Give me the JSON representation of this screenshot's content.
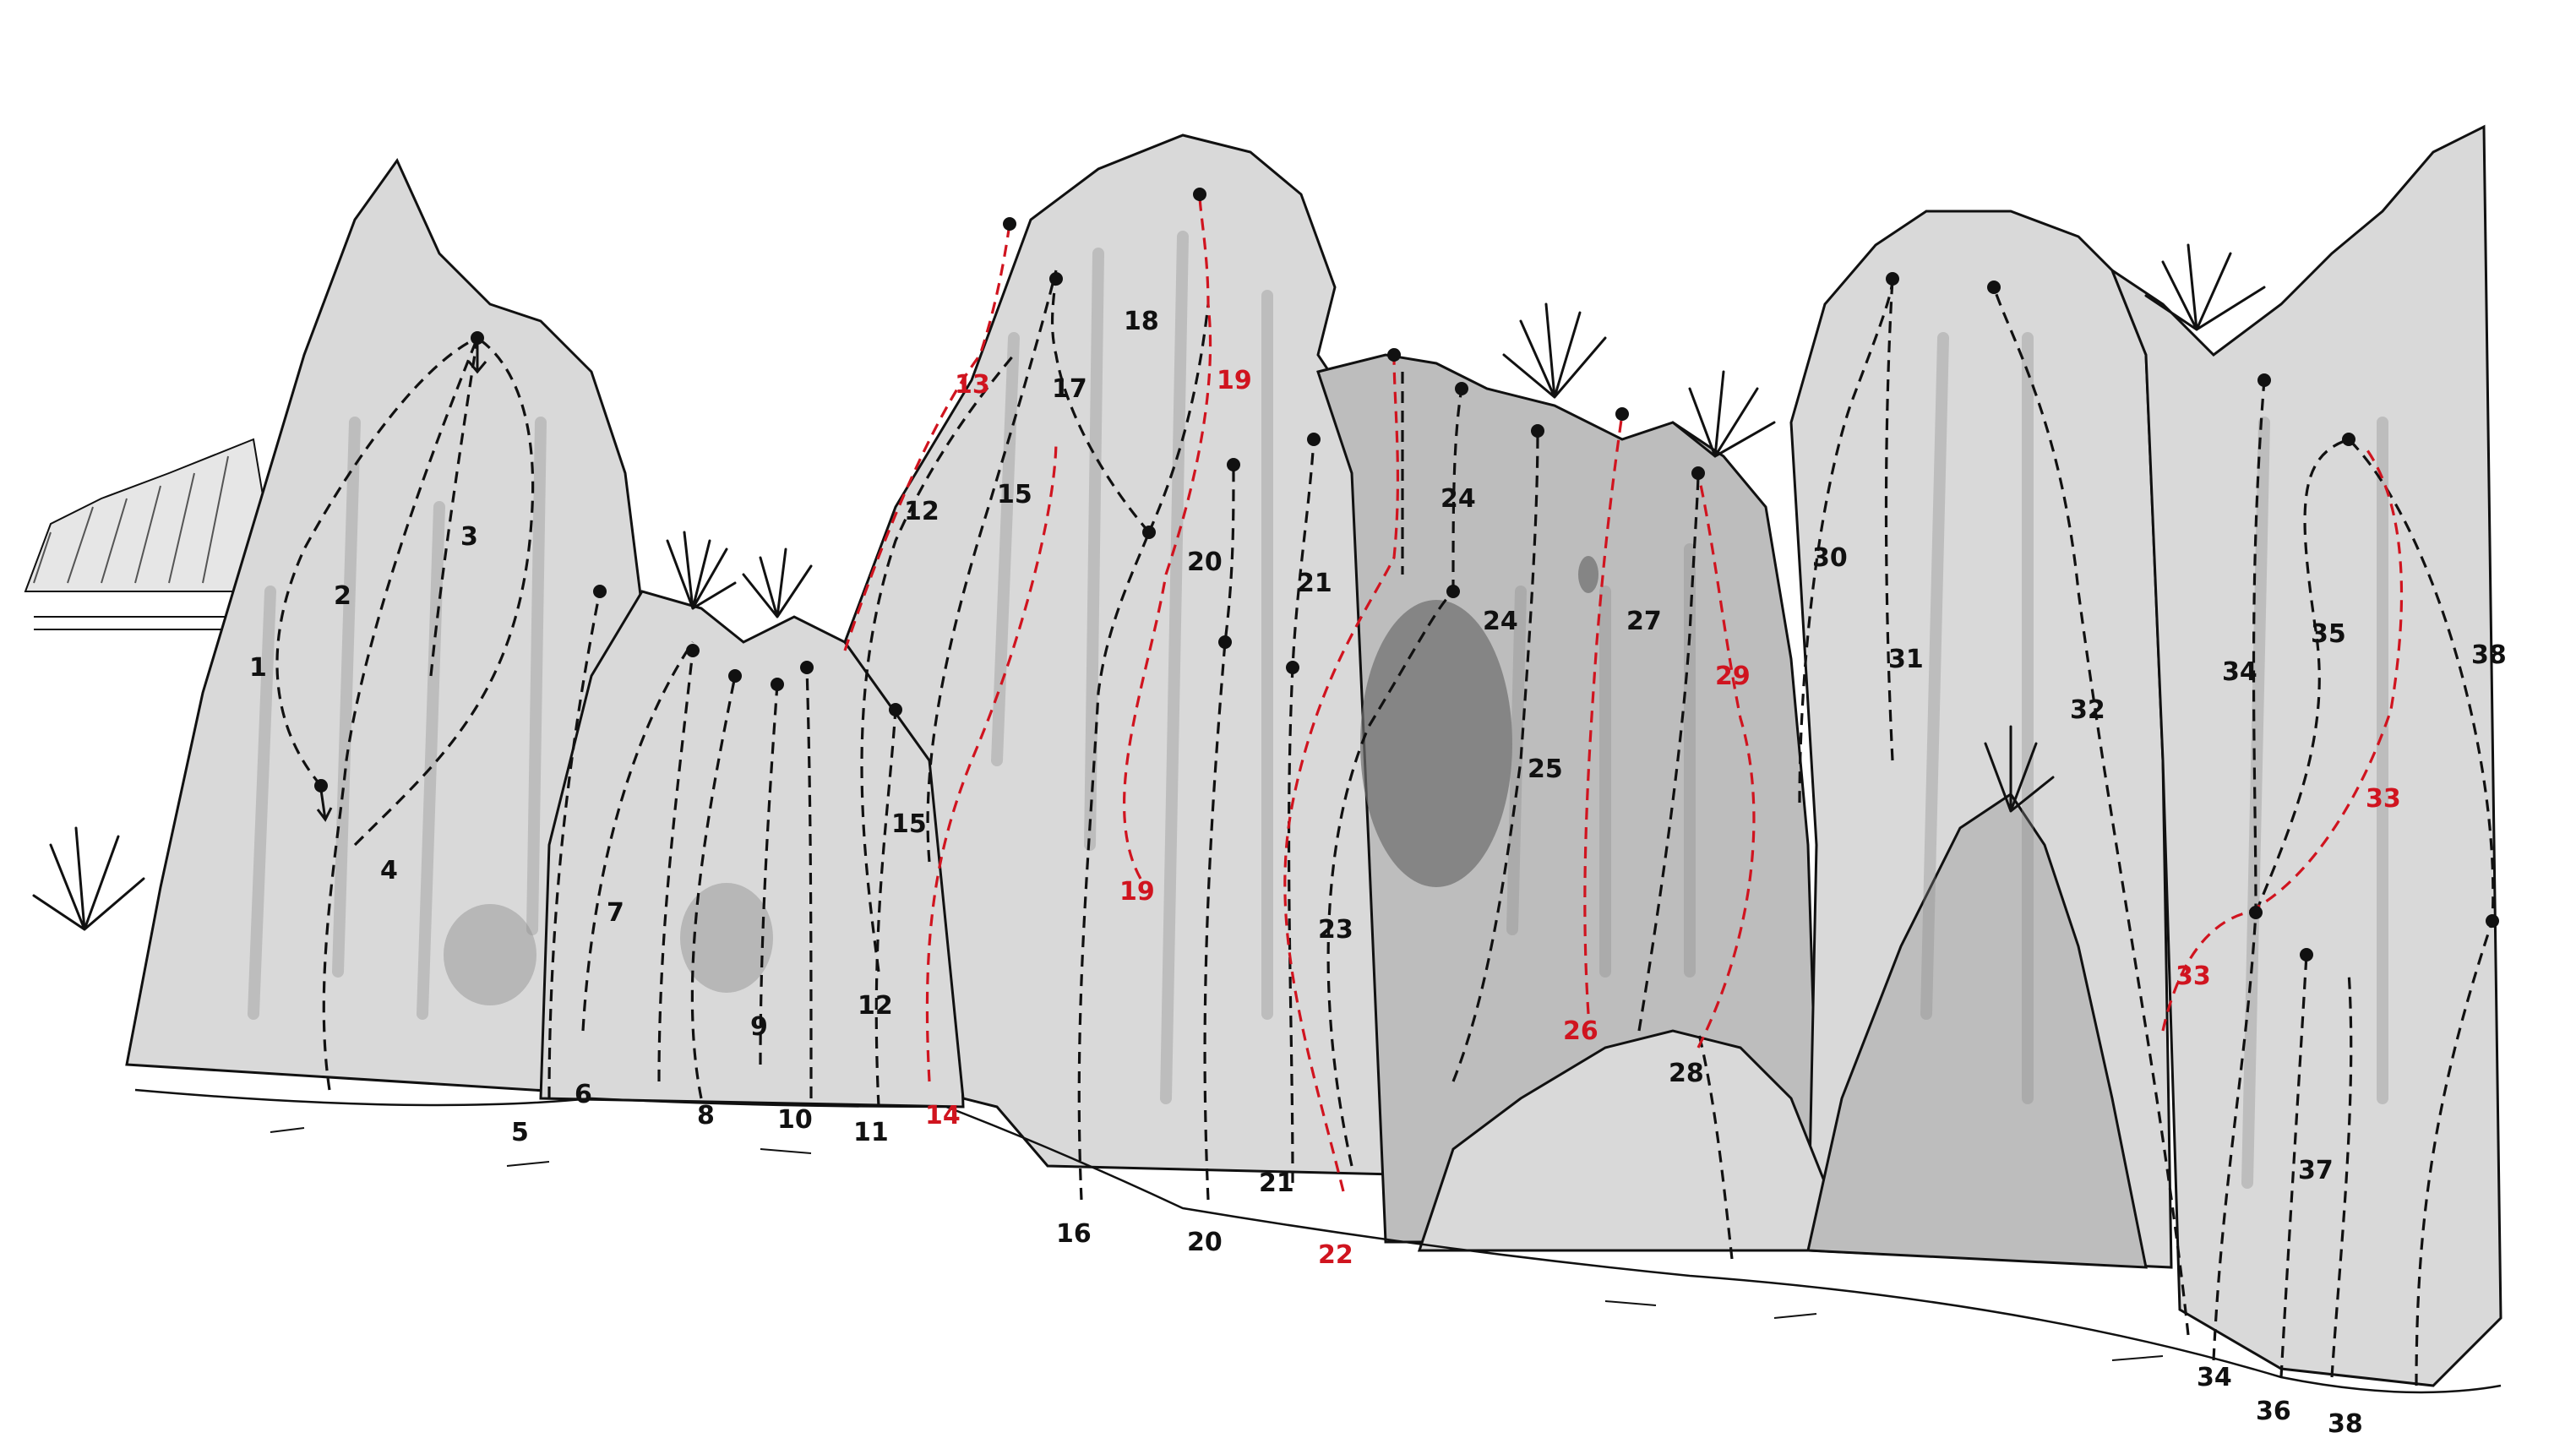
{
  "route_labels": {
    "r1": "1",
    "r2": "2",
    "r3": "3",
    "r4": "4",
    "r5": "5",
    "r6": "6",
    "r7": "7",
    "r8": "8",
    "r9": "9",
    "r10": "10",
    "r11": "11",
    "r12a": "12",
    "r12b": "12",
    "r13": "13",
    "r14": "14",
    "r15a": "15",
    "r15b": "15",
    "r16": "16",
    "r17": "17",
    "r18": "18",
    "r19a": "19",
    "r19b": "19",
    "r20a": "20",
    "r20b": "20",
    "r21a": "21",
    "r21b": "21",
    "r22": "22",
    "r23": "23",
    "r24a": "24",
    "r24b": "24",
    "r25": "25",
    "r26": "26",
    "r27": "27",
    "r28": "28",
    "r29": "29",
    "r30": "30",
    "r31": "31",
    "r32": "32",
    "r33a": "33",
    "r33b": "33",
    "r34a": "34",
    "r34b": "34",
    "r35": "35",
    "r36": "36",
    "r37": "37",
    "r38a": "38",
    "r38b": "38"
  },
  "colors": {
    "route_standard": "#111111",
    "route_highlight": "#d0141f",
    "rock_light": "#d9d9d9",
    "rock_mid": "#bdbdbd"
  },
  "legend": {
    "highlighted_routes": [
      "13",
      "14",
      "19",
      "22",
      "26",
      "29",
      "33"
    ]
  }
}
